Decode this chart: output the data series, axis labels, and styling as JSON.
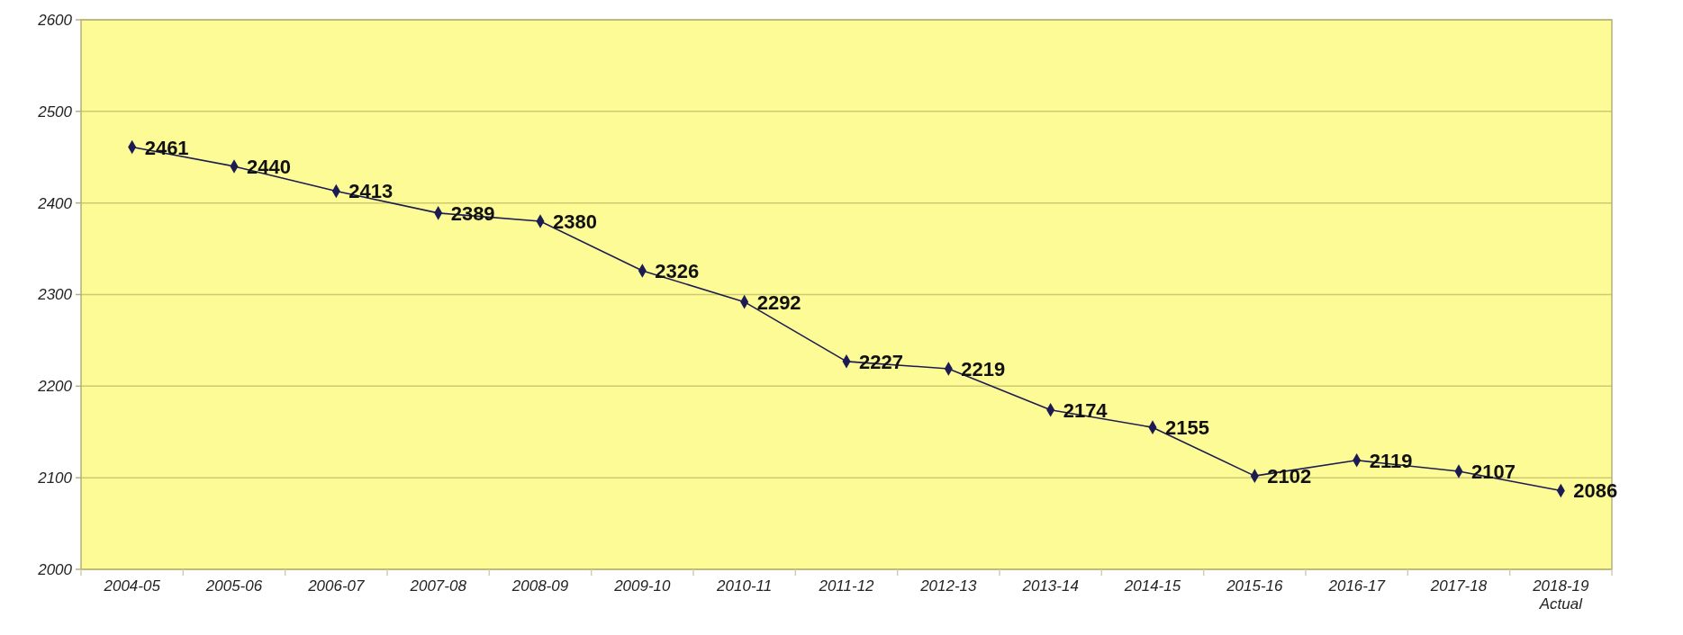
{
  "chart_data": {
    "type": "line",
    "categories": [
      "2004-05",
      "2005-06",
      "2006-07",
      "2007-08",
      "2008-09",
      "2009-10",
      "2010-11",
      "2011-12",
      "2012-13",
      "2013-14",
      "2014-15",
      "2015-16",
      "2016-17",
      "2017-18",
      "2018-19\nActual"
    ],
    "series": [
      {
        "color": "#1c1c52",
        "values": [
          2461,
          2440,
          2413,
          2389,
          2380,
          2326,
          2292,
          2227,
          2219,
          2174,
          2155,
          2102,
          2119,
          2107,
          2086
        ]
      }
    ],
    "ylim": [
      2000,
      2600
    ],
    "yticks": [
      2000,
      2100,
      2200,
      2300,
      2400,
      2500,
      2600
    ],
    "grid": "y",
    "marker": "diamond",
    "line_style": "solid",
    "data_labels": true
  }
}
